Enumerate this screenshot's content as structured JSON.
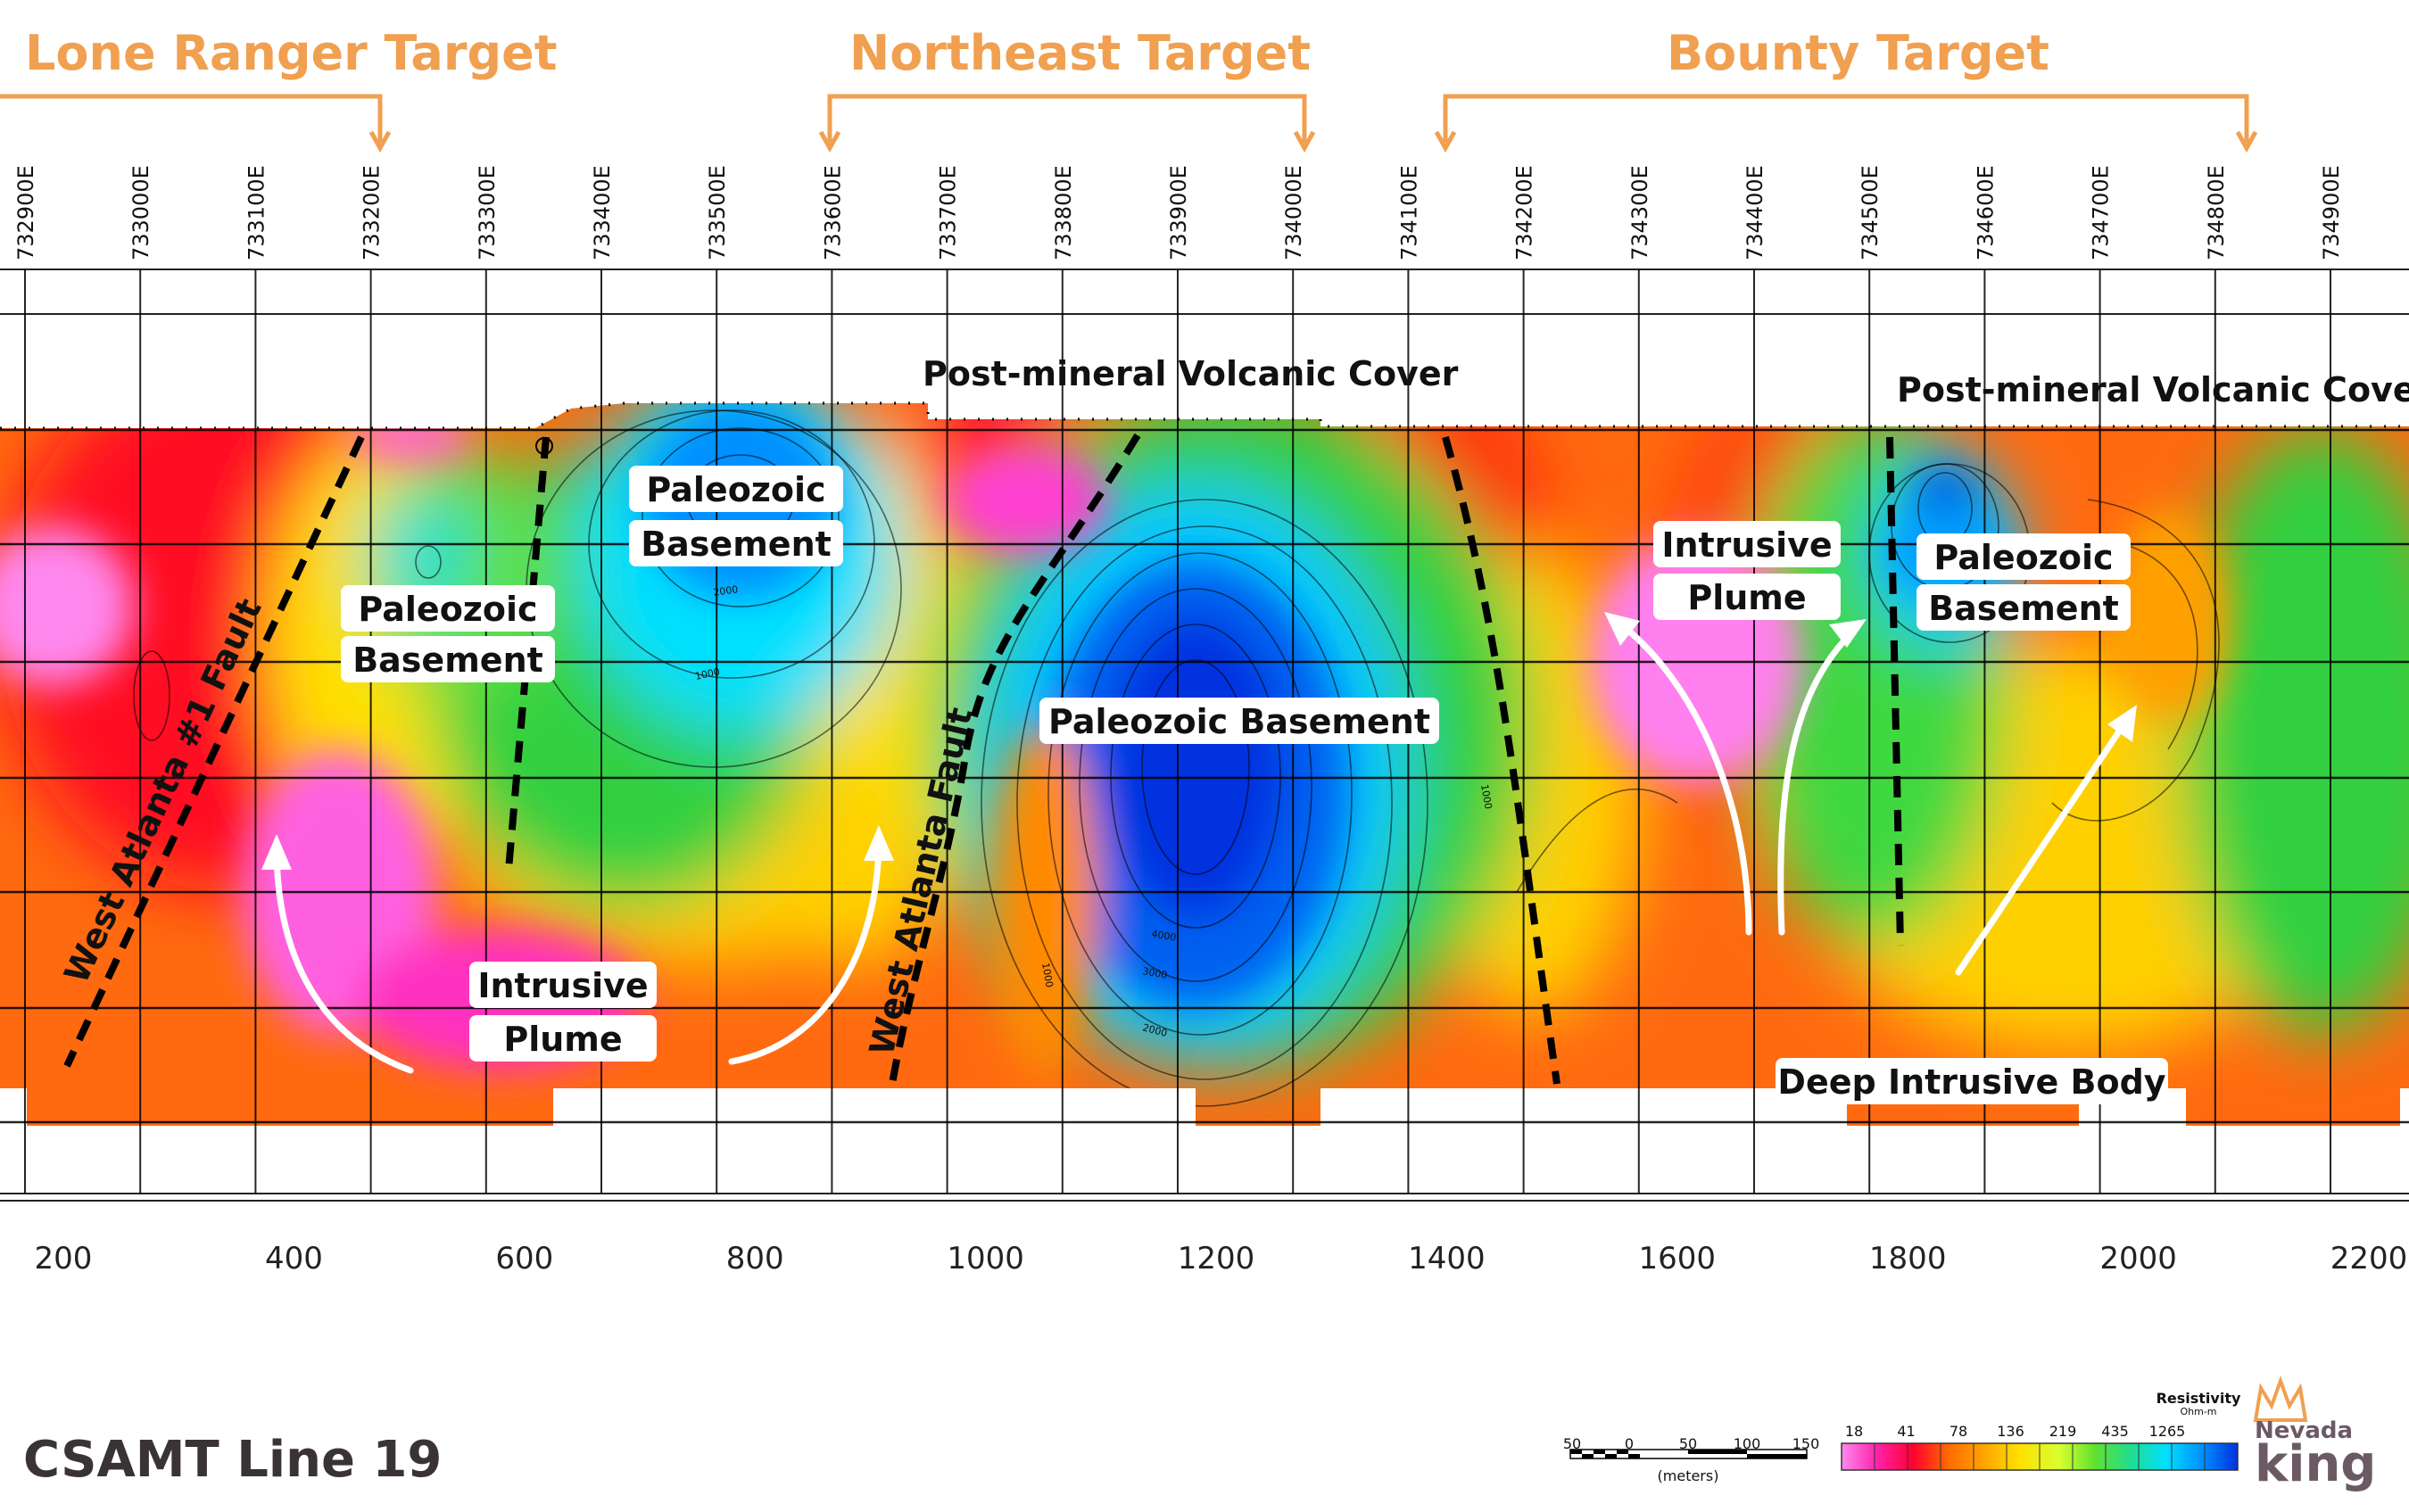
{
  "targets": [
    {
      "label": "Lone Ranger Target"
    },
    {
      "label": "Northeast Target"
    },
    {
      "label": "Bounty Target"
    }
  ],
  "eastings": [
    "732900E",
    "733000E",
    "733100E",
    "733200E",
    "733300E",
    "733400E",
    "733500E",
    "733600E",
    "733700E",
    "733800E",
    "733900E",
    "734000E",
    "734100E",
    "734200E",
    "734300E",
    "734400E",
    "734500E",
    "734600E",
    "734700E",
    "734800E",
    "734900E"
  ],
  "distance_ticks": [
    "200",
    "400",
    "600",
    "800",
    "1000",
    "1200",
    "1400",
    "1600",
    "1800",
    "2000",
    "2200"
  ],
  "labels": {
    "cover_left": "Post-mineral Volcanic Cover",
    "cover_right": "Post-mineral Volcanic Cover",
    "paleo_top_1": "Paleozoic",
    "paleo_top_2": "Basement",
    "paleo_left_1": "Paleozoic",
    "paleo_left_2": "Basement",
    "paleo_center": "Paleozoic Basement",
    "paleo_right_1": "Paleozoic",
    "paleo_right_2": "Basement",
    "plume_left_1": "Intrusive",
    "plume_left_2": "Plume",
    "plume_right_1": "Intrusive",
    "plume_right_2": "Plume",
    "deep_body": "Deep Intrusive Body"
  },
  "faults": {
    "west_atlanta_1": "West Atlanta #1 Fault",
    "west_atlanta": "West Atlanta Fault"
  },
  "contours": {
    "c2000": "2000",
    "c1000": "1000",
    "c1000b": "1000",
    "c1000c": "1000",
    "c2000b": "2000",
    "c4000": "4000",
    "c3000": "3000"
  },
  "title": "CSAMT Line 19",
  "scale_bar": {
    "ticks": [
      "50",
      "0",
      "50",
      "100",
      "150"
    ],
    "unit": "(meters)"
  },
  "legend": {
    "title": "Resistivity",
    "unit": "Ohm-m",
    "ticks": [
      "18",
      "41",
      "78",
      "136",
      "219",
      "435",
      "1265"
    ],
    "colors": [
      "#ff88ee",
      "#ff22aa",
      "#ff0030",
      "#ff6a00",
      "#ffa500",
      "#ffe000",
      "#d8ff30",
      "#60e030",
      "#20dd90",
      "#00e0ff",
      "#0090ff",
      "#0030e0"
    ]
  },
  "logo": {
    "line1": "Nevada",
    "line2": "king"
  },
  "colors": {
    "accent": "#f0a050"
  }
}
